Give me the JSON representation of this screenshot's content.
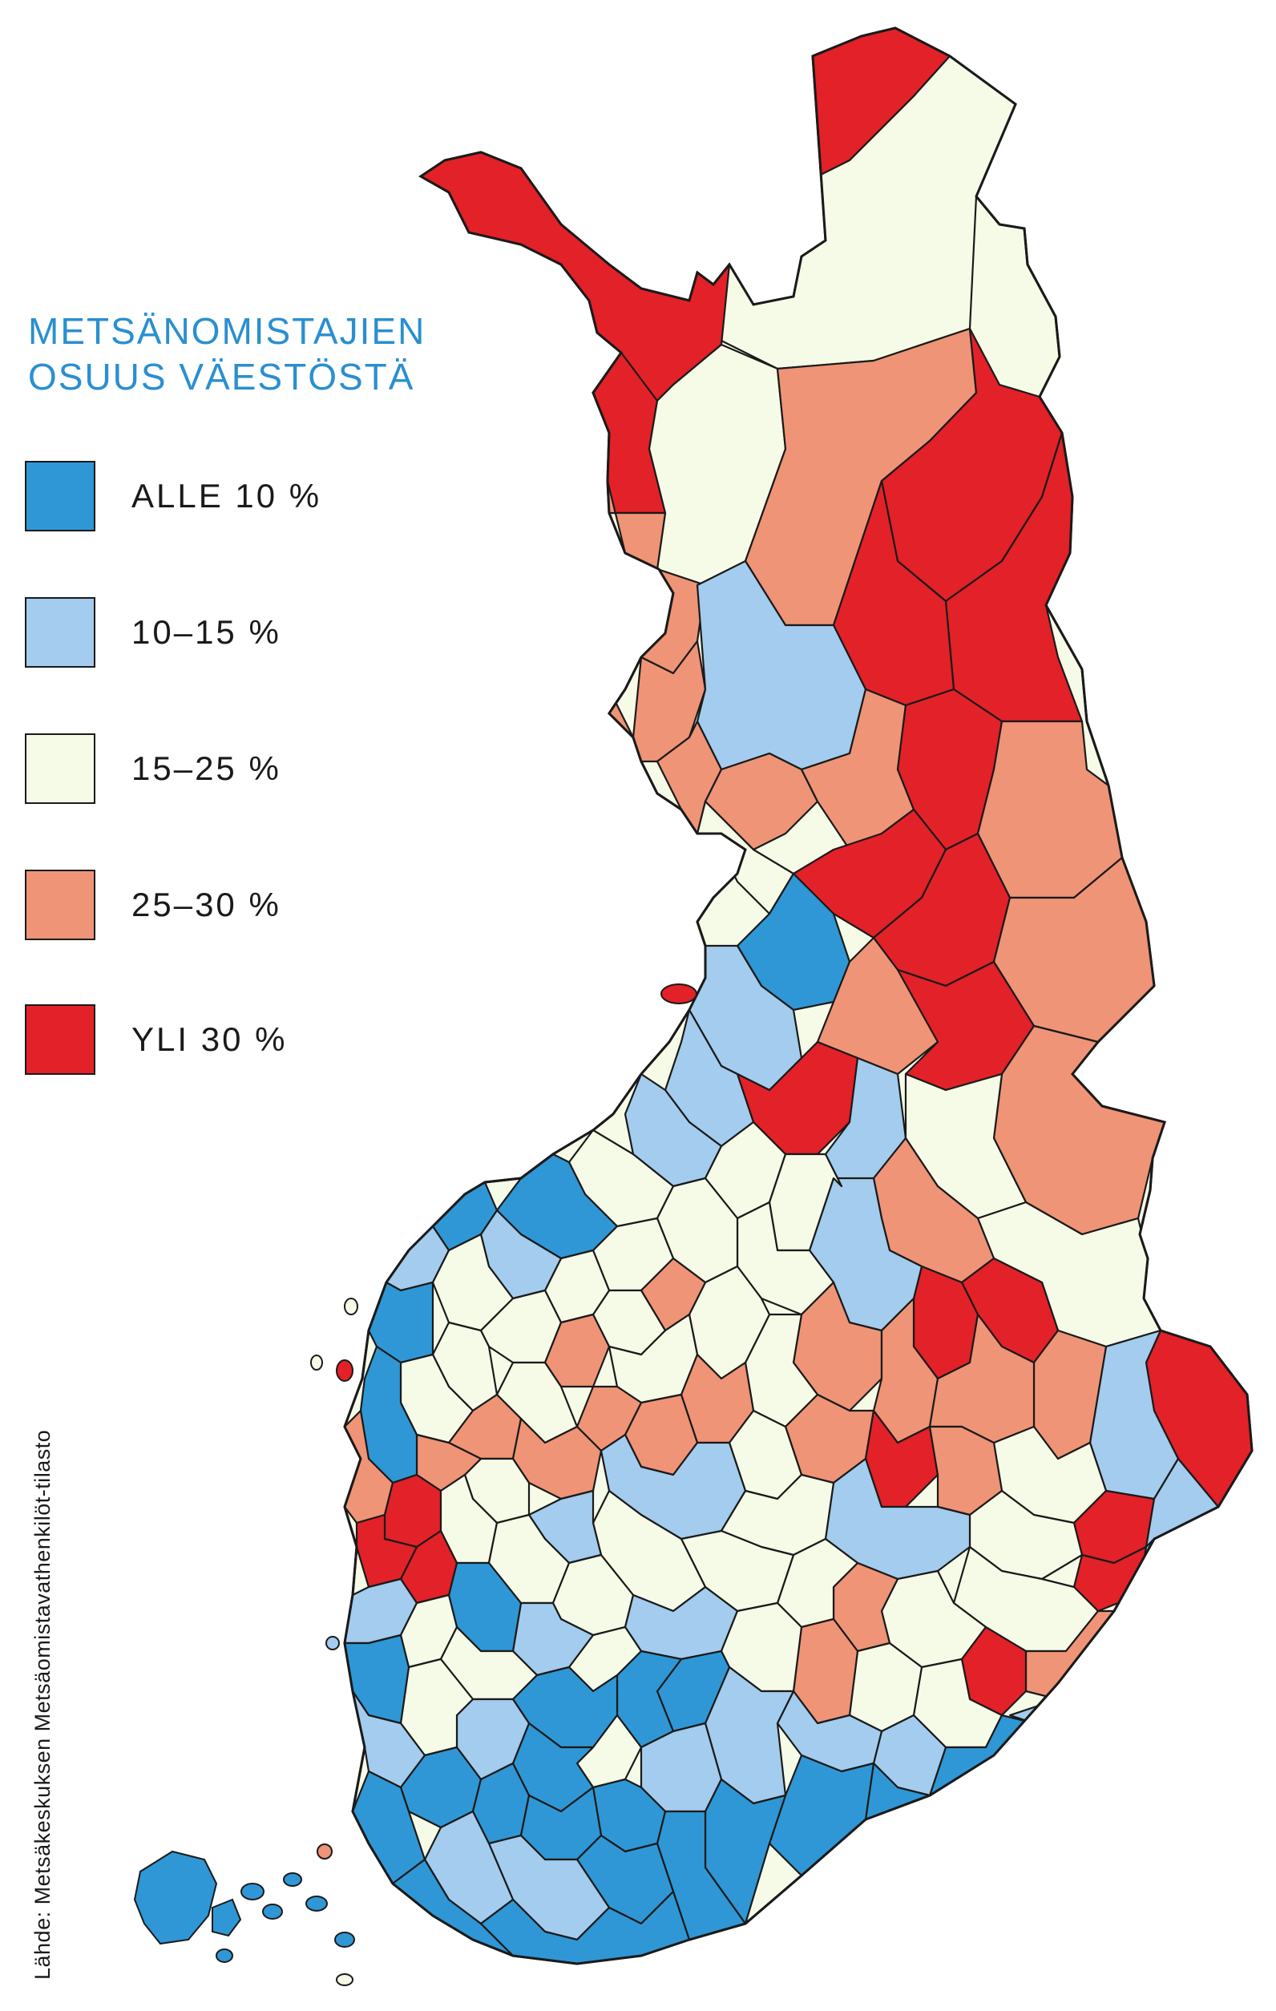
{
  "title": {
    "line1": "METSÄNOMISTAJIEN",
    "line2": "OSUUS VÄESTÖSTÄ"
  },
  "legend": [
    {
      "label": "ALLE 10 %",
      "color": "#2f97d5"
    },
    {
      "label": "10–15 %",
      "color": "#a3ccee"
    },
    {
      "label": "15–25 %",
      "color": "#f6fbe7"
    },
    {
      "label": "25–30 %",
      "color": "#ef9476"
    },
    {
      "label": "YLI 30 %",
      "color": "#e32128"
    }
  ],
  "source": "Lähde: Metsäkeskuksen Metsäomistavathenkilöt-tilasto",
  "colors": {
    "title": "#2a8fd0",
    "border": "#1a1a1a",
    "background": "#ffffff"
  }
}
